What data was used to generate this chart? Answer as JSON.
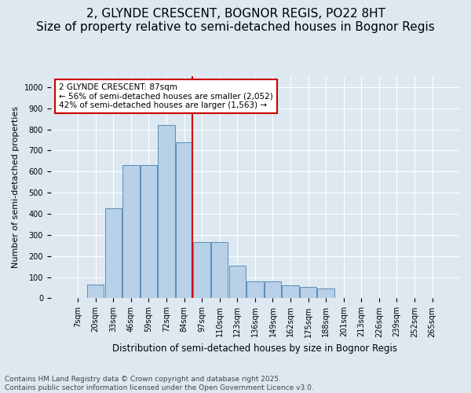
{
  "title1": "2, GLYNDE CRESCENT, BOGNOR REGIS, PO22 8HT",
  "title2": "Size of property relative to semi-detached houses in Bognor Regis",
  "xlabel": "Distribution of semi-detached houses by size in Bognor Regis",
  "ylabel": "Number of semi-detached properties",
  "categories": [
    "7sqm",
    "20sqm",
    "33sqm",
    "46sqm",
    "59sqm",
    "72sqm",
    "84sqm",
    "97sqm",
    "110sqm",
    "123sqm",
    "136sqm",
    "149sqm",
    "162sqm",
    "175sqm",
    "188sqm",
    "201sqm",
    "213sqm",
    "226sqm",
    "239sqm",
    "252sqm",
    "265sqm"
  ],
  "values": [
    0,
    65,
    425,
    630,
    630,
    820,
    740,
    265,
    265,
    155,
    80,
    80,
    60,
    55,
    45,
    0,
    0,
    0,
    0,
    0,
    0
  ],
  "bar_color": "#b8d0e8",
  "bar_edge_color": "#5b8db8",
  "vline_x_idx": 6.45,
  "vline_color": "#cc0000",
  "annotation_text": "2 GLYNDE CRESCENT: 87sqm\n← 56% of semi-detached houses are smaller (2,052)\n42% of semi-detached houses are larger (1,563) →",
  "annotation_box_facecolor": "#ffffff",
  "annotation_box_edgecolor": "#cc0000",
  "ylim": [
    0,
    1050
  ],
  "yticks": [
    0,
    100,
    200,
    300,
    400,
    500,
    600,
    700,
    800,
    900,
    1000
  ],
  "footer1": "Contains HM Land Registry data © Crown copyright and database right 2025.",
  "footer2": "Contains public sector information licensed under the Open Government Licence v3.0.",
  "bg_color": "#dde8f0",
  "plot_bg": "#dde8f0",
  "grid_color": "#ffffff",
  "title1_fontsize": 11,
  "title2_fontsize": 9,
  "xlabel_fontsize": 8.5,
  "ylabel_fontsize": 8,
  "tick_fontsize": 7,
  "annot_fontsize": 7.5,
  "footer_fontsize": 6.5,
  "figsize": [
    6.0,
    5.0
  ],
  "dpi": 100
}
